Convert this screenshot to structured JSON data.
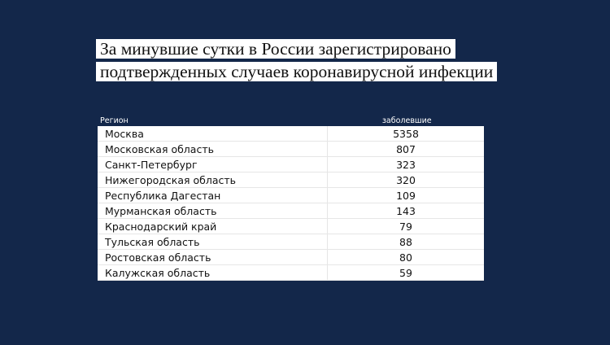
{
  "title": {
    "lines": [
      "За минувшие сутки в России зарегистрировано",
      "подтвержденных случаев коронавирусной инфекции"
    ]
  },
  "table": {
    "header": [
      "Регион",
      "заболевшие"
    ],
    "rows": [
      [
        "Москва",
        5358
      ],
      [
        "Московская область",
        807
      ],
      [
        "Санкт-Петербург",
        323
      ],
      [
        "Нижегородская область",
        320
      ],
      [
        "Республика Дагестан",
        109
      ],
      [
        "Мурманская область",
        143
      ],
      [
        "Краснодарский край",
        79
      ],
      [
        "Тульская область",
        88
      ],
      [
        "Ростовская область",
        80
      ],
      [
        "Калужская область",
        59
      ]
    ]
  }
}
